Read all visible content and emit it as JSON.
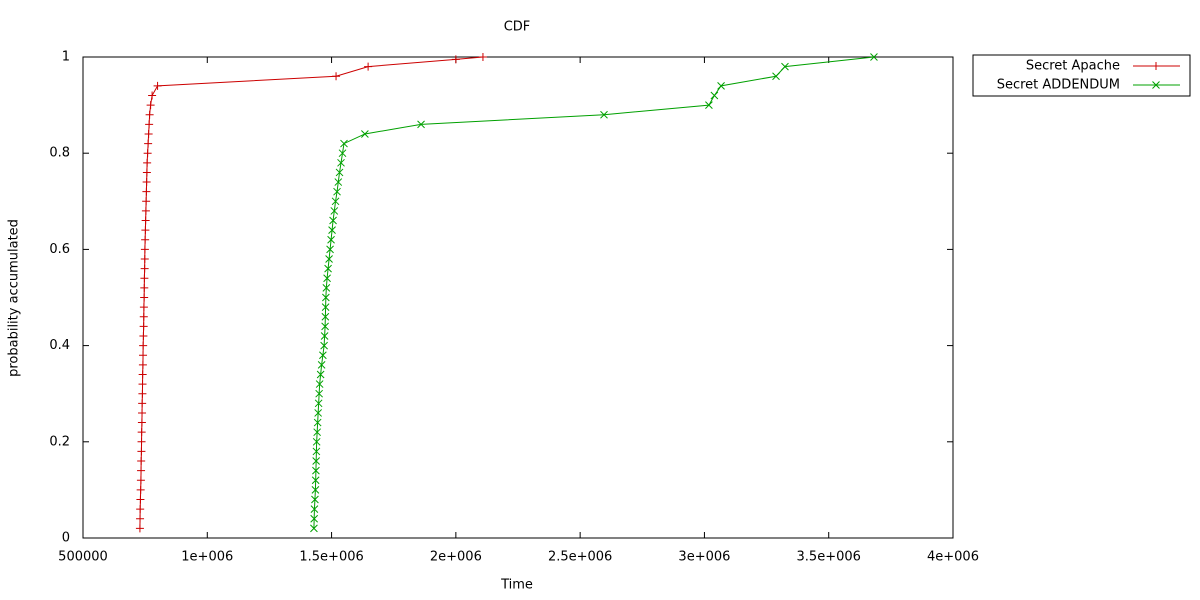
{
  "chart_data": {
    "type": "line",
    "title": "CDF",
    "x_label": "Time",
    "y_label": "probability accumulated",
    "xlim": [
      500000,
      4000000
    ],
    "ylim": [
      0,
      1
    ],
    "xticks": [
      500000,
      {
        "value": 1000000,
        "label": "1e+006"
      },
      {
        "value": 1500000,
        "label": "1.5e+006"
      },
      {
        "value": 2000000,
        "label": "2e+006"
      },
      {
        "value": 2500000,
        "label": "2.5e+006"
      },
      {
        "value": 3000000,
        "label": "3e+006"
      },
      {
        "value": 3500000,
        "label": "3.5e+006"
      },
      {
        "value": 4000000,
        "label": "4e+006"
      }
    ],
    "yticks": [
      0,
      0.2,
      0.4,
      0.6,
      0.8,
      1
    ],
    "grid": false,
    "legend": "outside-top-right",
    "series": [
      {
        "name": "Secret Apache",
        "color": "#cc0000",
        "marker": "plus",
        "x": [
          729000,
          729500,
          730000,
          731000,
          732000,
          733000,
          733500,
          734000,
          735000,
          735500,
          736000,
          737000,
          737500,
          738000,
          739000,
          739500,
          740000,
          741000,
          741500,
          742000,
          743000,
          744000,
          744500,
          745000,
          746000,
          746500,
          747000,
          748000,
          748500,
          749000,
          750000,
          751000,
          752000,
          753000,
          754000,
          755000,
          756000,
          757000,
          758000,
          760000,
          762000,
          764000,
          766000,
          768000,
          772000,
          778000,
          800000,
          1518000,
          1647000,
          2000000,
          2109000
        ],
        "values": [
          0.02,
          0.04,
          0.06,
          0.08,
          0.1,
          0.12,
          0.14,
          0.16,
          0.18,
          0.2,
          0.22,
          0.24,
          0.26,
          0.28,
          0.3,
          0.32,
          0.34,
          0.36,
          0.38,
          0.4,
          0.42,
          0.44,
          0.46,
          0.48,
          0.5,
          0.52,
          0.54,
          0.56,
          0.58,
          0.6,
          0.62,
          0.64,
          0.66,
          0.68,
          0.7,
          0.72,
          0.74,
          0.76,
          0.78,
          0.8,
          0.82,
          0.84,
          0.86,
          0.88,
          0.9,
          0.92,
          0.94,
          0.96,
          0.98,
          0.995,
          1
        ]
      },
      {
        "name": "Secret ADDENDUM",
        "color": "#00a000",
        "marker": "cross",
        "x": [
          1429000,
          1430000,
          1431000,
          1433000,
          1435000,
          1436000,
          1437000,
          1438000,
          1439000,
          1440000,
          1442000,
          1444000,
          1446000,
          1448000,
          1450000,
          1452000,
          1456000,
          1460000,
          1465000,
          1470000,
          1472000,
          1474000,
          1475000,
          1476000,
          1477000,
          1479000,
          1482000,
          1486000,
          1490000,
          1494000,
          1498000,
          1502000,
          1506000,
          1511000,
          1516000,
          1522000,
          1527000,
          1532000,
          1538000,
          1544000,
          1550000,
          1634000,
          1860000,
          2596000,
          3018000,
          3040000,
          3067000,
          3288000,
          3324000,
          3682000
        ],
        "values": [
          0.02,
          0.04,
          0.06,
          0.08,
          0.1,
          0.12,
          0.14,
          0.16,
          0.18,
          0.2,
          0.22,
          0.24,
          0.26,
          0.28,
          0.3,
          0.32,
          0.34,
          0.36,
          0.38,
          0.4,
          0.42,
          0.44,
          0.46,
          0.48,
          0.5,
          0.52,
          0.54,
          0.56,
          0.58,
          0.6,
          0.62,
          0.64,
          0.66,
          0.68,
          0.7,
          0.72,
          0.74,
          0.76,
          0.78,
          0.8,
          0.82,
          0.84,
          0.86,
          0.88,
          0.9,
          0.92,
          0.94,
          0.96,
          0.98,
          1
        ]
      }
    ]
  }
}
